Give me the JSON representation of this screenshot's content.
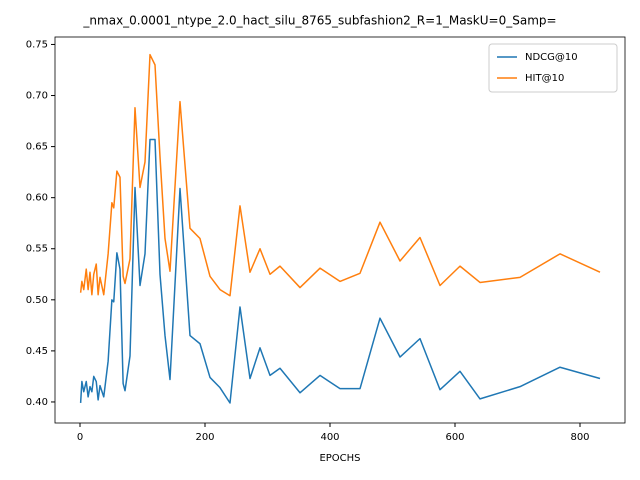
{
  "chart_data": {
    "type": "line",
    "title": "_nmax_0.0001_ntype_2.0_hact_silu_8765_subfashion2_R=1_MaskU=0_Samp=",
    "x_label": "EPOCHS",
    "x": [
      1,
      3,
      6,
      10,
      13,
      16,
      19,
      22,
      26,
      29,
      32,
      38,
      45,
      51,
      54,
      59,
      64,
      69,
      72,
      80,
      88,
      96,
      104,
      112,
      120,
      128,
      136,
      144,
      160,
      176,
      192,
      208,
      224,
      240,
      256,
      272,
      288,
      304,
      320,
      352,
      384,
      416,
      448,
      480,
      512,
      544,
      576,
      608,
      640,
      704,
      768,
      832
    ],
    "series": [
      {
        "name": "NDCG@10",
        "color": "#1f77b4",
        "values": [
          0.399,
          0.42,
          0.41,
          0.42,
          0.405,
          0.415,
          0.41,
          0.425,
          0.42,
          0.402,
          0.416,
          0.405,
          0.44,
          0.5,
          0.498,
          0.546,
          0.53,
          0.418,
          0.411,
          0.445,
          0.61,
          0.514,
          0.545,
          0.657,
          0.657,
          0.525,
          0.465,
          0.422,
          0.609,
          0.465,
          0.457,
          0.424,
          0.414,
          0.399,
          0.493,
          0.423,
          0.453,
          0.426,
          0.433,
          0.409,
          0.426,
          0.413,
          0.413,
          0.482,
          0.444,
          0.462,
          0.412,
          0.43,
          0.403,
          0.415,
          0.434,
          0.423
        ]
      },
      {
        "name": "HIT@10",
        "color": "#ff7f0e",
        "values": [
          0.507,
          0.518,
          0.51,
          0.53,
          0.51,
          0.527,
          0.505,
          0.525,
          0.535,
          0.505,
          0.522,
          0.505,
          0.545,
          0.595,
          0.59,
          0.626,
          0.62,
          0.523,
          0.516,
          0.54,
          0.688,
          0.61,
          0.635,
          0.74,
          0.73,
          0.64,
          0.56,
          0.528,
          0.694,
          0.57,
          0.56,
          0.523,
          0.51,
          0.504,
          0.592,
          0.527,
          0.55,
          0.525,
          0.533,
          0.512,
          0.531,
          0.518,
          0.526,
          0.576,
          0.538,
          0.561,
          0.514,
          0.533,
          0.517,
          0.522,
          0.545,
          0.527
        ]
      }
    ],
    "xlim": [
      -40,
      872
    ],
    "ylim": [
      0.3794,
      0.7573
    ],
    "xticks": [
      0,
      200,
      400,
      600,
      800
    ],
    "yticks": [
      {
        "value": 0.4,
        "label": "0.40"
      },
      {
        "value": 0.45,
        "label": "0.45"
      },
      {
        "value": 0.5,
        "label": "0.50"
      },
      {
        "value": 0.55,
        "label": "0.55"
      },
      {
        "value": 0.6,
        "label": "0.60"
      },
      {
        "value": 0.65,
        "label": "0.65"
      },
      {
        "value": 0.7,
        "label": "0.70"
      },
      {
        "value": 0.75,
        "label": "0.75"
      }
    ],
    "legend": "upper right",
    "grid": false
  }
}
